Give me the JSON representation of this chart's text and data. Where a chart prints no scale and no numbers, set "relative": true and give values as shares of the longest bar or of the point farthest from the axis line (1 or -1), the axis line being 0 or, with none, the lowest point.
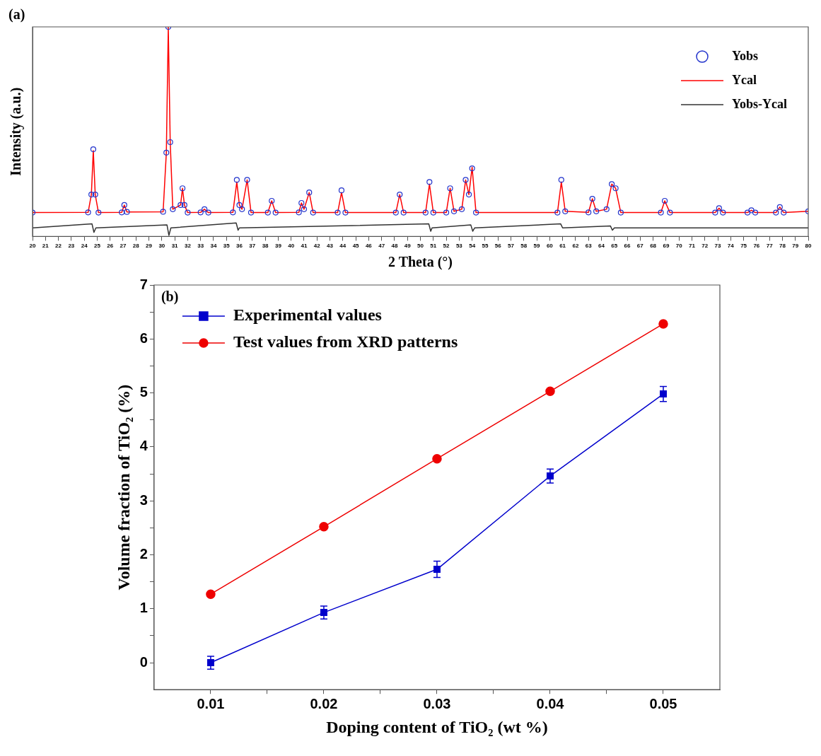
{
  "chart_data": [
    {
      "type": "line",
      "title": "(a)",
      "xlabel": "2 Theta (°)",
      "ylabel": "Intensity (a.u.)",
      "relative": true,
      "tick_labels": "x",
      "legend": "top right",
      "grid": false,
      "xlim": [
        20,
        80
      ],
      "xticks": [
        20,
        21,
        22,
        23,
        24,
        25,
        26,
        27,
        28,
        29,
        30,
        31,
        32,
        33,
        34,
        35,
        36,
        37,
        38,
        39,
        40,
        41,
        42,
        43,
        44,
        45,
        46,
        47,
        48,
        49,
        50,
        51,
        52,
        53,
        54,
        55,
        56,
        57,
        58,
        59,
        60,
        61,
        62,
        63,
        64,
        65,
        66,
        67,
        68,
        69,
        70,
        71,
        72,
        73,
        74,
        75,
        76,
        77,
        78,
        79,
        80
      ],
      "series": [
        {
          "name": "Yobs",
          "type": "scatter",
          "marker": "circle",
          "color": "#2233cc",
          "x": [
            20,
            24.3,
            24.55,
            24.7,
            24.85,
            25.1,
            26.9,
            27.1,
            27.3,
            30.1,
            30.35,
            30.5,
            30.65,
            30.85,
            31.45,
            31.6,
            31.75,
            32.0,
            33.0,
            33.3,
            33.6,
            35.5,
            35.8,
            36.0,
            36.2,
            36.6,
            36.9,
            38.2,
            38.5,
            38.8,
            40.6,
            40.8,
            41.0,
            41.4,
            41.7,
            43.6,
            43.9,
            44.2,
            48.1,
            48.4,
            48.7,
            50.4,
            50.7,
            51.0,
            52.0,
            52.3,
            52.6,
            53.2,
            53.5,
            53.75,
            54.0,
            54.3,
            60.6,
            60.9,
            61.2,
            63.0,
            63.3,
            63.6,
            64.4,
            64.8,
            65.1,
            65.5,
            68.6,
            68.9,
            69.3,
            72.8,
            73.1,
            73.4,
            75.3,
            75.6,
            75.9,
            77.5,
            77.8,
            78.1,
            80
          ],
          "values": [
            0.114,
            0.115,
            0.2,
            0.416,
            0.2,
            0.114,
            0.115,
            0.15,
            0.117,
            0.118,
            0.4,
            1,
            0.45,
            0.13,
            0.15,
            0.23,
            0.15,
            0.114,
            0.115,
            0.13,
            0.114,
            0.115,
            0.27,
            0.15,
            0.13,
            0.27,
            0.114,
            0.114,
            0.17,
            0.114,
            0.115,
            0.16,
            0.13,
            0.21,
            0.114,
            0.114,
            0.22,
            0.114,
            0.114,
            0.2,
            0.114,
            0.114,
            0.26,
            0.114,
            0.114,
            0.23,
            0.12,
            0.13,
            0.27,
            0.2,
            0.325,
            0.114,
            0.114,
            0.27,
            0.12,
            0.115,
            0.18,
            0.12,
            0.13,
            0.25,
            0.23,
            0.114,
            0.114,
            0.17,
            0.114,
            0.114,
            0.135,
            0.114,
            0.114,
            0.125,
            0.114,
            0.114,
            0.14,
            0.114,
            0.12
          ]
        },
        {
          "name": "Ycal",
          "type": "line",
          "marker": "none",
          "color": "#ff0000",
          "x": [
            20,
            24.3,
            24.55,
            24.7,
            24.85,
            25.1,
            26.9,
            27.1,
            27.3,
            30.1,
            30.35,
            30.5,
            30.65,
            30.85,
            31.45,
            31.6,
            31.75,
            32.0,
            33.0,
            33.3,
            33.6,
            35.5,
            35.8,
            36.0,
            36.2,
            36.6,
            36.9,
            38.2,
            38.5,
            38.8,
            40.6,
            40.8,
            41.0,
            41.4,
            41.7,
            43.6,
            43.9,
            44.2,
            48.1,
            48.4,
            48.7,
            50.4,
            50.7,
            51.0,
            52.0,
            52.3,
            52.6,
            53.2,
            53.5,
            53.75,
            54.0,
            54.3,
            60.6,
            60.9,
            61.2,
            63.0,
            63.3,
            63.6,
            64.4,
            64.8,
            65.1,
            65.5,
            68.6,
            68.9,
            69.3,
            72.8,
            73.1,
            73.4,
            75.3,
            75.6,
            75.9,
            77.5,
            77.8,
            78.1,
            80
          ],
          "values": [
            0.114,
            0.115,
            0.2,
            0.41,
            0.2,
            0.114,
            0.115,
            0.15,
            0.117,
            0.118,
            0.4,
            1,
            0.45,
            0.13,
            0.15,
            0.23,
            0.15,
            0.114,
            0.115,
            0.13,
            0.114,
            0.115,
            0.26,
            0.15,
            0.13,
            0.27,
            0.114,
            0.114,
            0.17,
            0.114,
            0.115,
            0.16,
            0.13,
            0.21,
            0.114,
            0.114,
            0.21,
            0.114,
            0.114,
            0.2,
            0.114,
            0.114,
            0.25,
            0.114,
            0.114,
            0.23,
            0.12,
            0.13,
            0.27,
            0.2,
            0.33,
            0.114,
            0.114,
            0.26,
            0.12,
            0.115,
            0.18,
            0.12,
            0.13,
            0.25,
            0.23,
            0.114,
            0.114,
            0.17,
            0.114,
            0.114,
            0.135,
            0.114,
            0.114,
            0.125,
            0.114,
            0.114,
            0.14,
            0.114,
            0.12
          ]
        },
        {
          "name": "Yobs-Ycal",
          "type": "line",
          "marker": "none",
          "color": "#333333",
          "x": [
            20,
            24.6,
            24.75,
            24.9,
            30.4,
            30.55,
            30.7,
            35.75,
            35.9,
            36.0,
            50.65,
            50.8,
            50.9,
            53.9,
            54.05,
            54.2,
            60.85,
            61.0,
            64.7,
            64.85,
            65.0,
            80
          ],
          "values": [
            0.041,
            0.06,
            0.02,
            0.041,
            0.055,
            0.005,
            0.041,
            0.065,
            0.03,
            0.041,
            0.06,
            0.025,
            0.041,
            0.055,
            0.025,
            0.041,
            0.06,
            0.041,
            0.05,
            0.03,
            0.041,
            0.041
          ]
        }
      ]
    },
    {
      "type": "line",
      "title": "(b)",
      "xlabel": "Doping content of TiO₂ (wt %)",
      "ylabel": "Volume fraction of TiO₂ (%)",
      "legend": "top left",
      "grid": false,
      "xlim": [
        0.005,
        0.055
      ],
      "xticks": [
        {
          "value": 0.01,
          "label": "0.01"
        },
        {
          "value": 0.015,
          "label": null
        },
        {
          "value": 0.02,
          "label": "0.02"
        },
        {
          "value": 0.025,
          "label": null
        },
        {
          "value": 0.03,
          "label": "0.03"
        },
        {
          "value": 0.035,
          "label": null
        },
        {
          "value": 0.04,
          "label": "0.04"
        },
        {
          "value": 0.045,
          "label": null
        },
        {
          "value": 0.05,
          "label": "0.05"
        }
      ],
      "ylim": [
        -0.5,
        7
      ],
      "yticks": [
        0,
        {
          "value": 0.5,
          "label": null
        },
        1,
        {
          "value": 1.5,
          "label": null
        },
        2,
        {
          "value": 2.5,
          "label": null
        },
        3,
        {
          "value": 3.5,
          "label": null
        },
        4,
        {
          "value": 4.5,
          "label": null
        },
        5,
        {
          "value": 5.5,
          "label": null
        },
        6,
        {
          "value": 6.5,
          "label": null
        },
        7
      ],
      "x": [
        0.01,
        0.02,
        0.03,
        0.04,
        0.05
      ],
      "series": [
        {
          "name": "Experimental values",
          "marker": "square",
          "color": "#0000cc",
          "values": [
            0,
            0.93,
            1.73,
            3.46,
            4.98
          ],
          "errors": [
            0.12,
            0.12,
            0.15,
            0.13,
            0.14
          ]
        },
        {
          "name": "Test values from XRD patterns",
          "marker": "circle",
          "color": "#ee0000",
          "values": [
            1.27,
            2.52,
            3.78,
            5.03,
            6.28
          ]
        }
      ]
    }
  ]
}
